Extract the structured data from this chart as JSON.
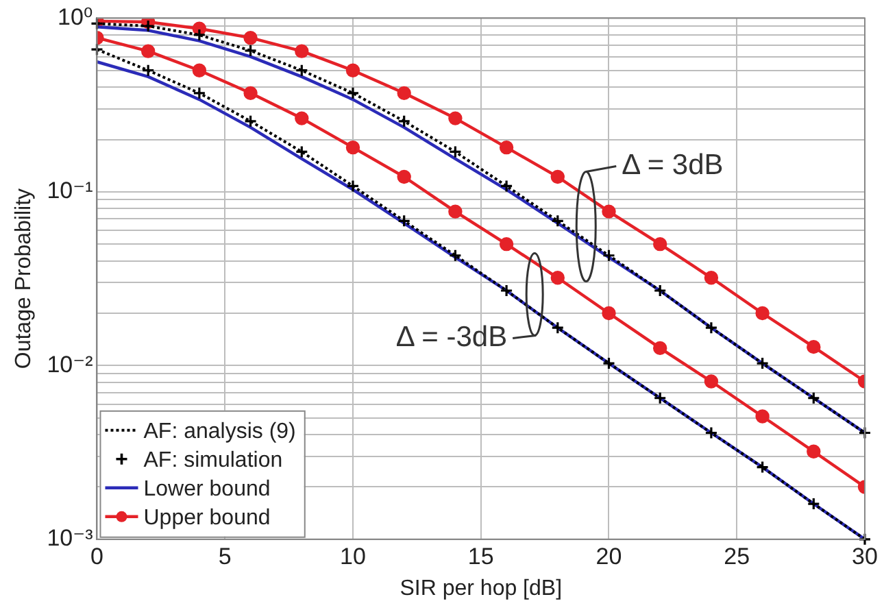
{
  "chart_data": {
    "type": "line",
    "xlabel": "SIR per hop [dB]",
    "ylabel": "Outage Probability",
    "log": "y",
    "grid": true,
    "legend": "bottom left",
    "x": [
      0,
      2,
      4,
      6,
      8,
      10,
      12,
      14,
      16,
      18,
      20,
      22,
      24,
      26,
      28,
      30
    ],
    "xlim": [
      0,
      30
    ],
    "xticks": [
      0,
      5,
      10,
      15,
      20,
      25,
      30
    ],
    "ylim": [
      0.001,
      1
    ],
    "yticks": [
      {
        "value": 0.001,
        "label": "10⁻³"
      },
      {
        "value": 0.002,
        "label": null
      },
      {
        "value": 0.003,
        "label": null
      },
      {
        "value": 0.004,
        "label": null
      },
      {
        "value": 0.005,
        "label": null
      },
      {
        "value": 0.006,
        "label": null
      },
      {
        "value": 0.007,
        "label": null
      },
      {
        "value": 0.008,
        "label": null
      },
      {
        "value": 0.009,
        "label": null
      },
      {
        "value": 0.01,
        "label": "10⁻²"
      },
      {
        "value": 0.02,
        "label": null
      },
      {
        "value": 0.03,
        "label": null
      },
      {
        "value": 0.04,
        "label": null
      },
      {
        "value": 0.05,
        "label": null
      },
      {
        "value": 0.06,
        "label": null
      },
      {
        "value": 0.07,
        "label": null
      },
      {
        "value": 0.08,
        "label": null
      },
      {
        "value": 0.09,
        "label": null
      },
      {
        "value": 0.1,
        "label": "10⁻¹"
      },
      {
        "value": 0.2,
        "label": null
      },
      {
        "value": 0.3,
        "label": null
      },
      {
        "value": 0.4,
        "label": null
      },
      {
        "value": 0.5,
        "label": null
      },
      {
        "value": 0.6,
        "label": null
      },
      {
        "value": 0.7,
        "label": null
      },
      {
        "value": 0.8,
        "label": null
      },
      {
        "value": 0.9,
        "label": null
      },
      {
        "value": 1,
        "label": "10⁰"
      }
    ],
    "series": [
      {
        "name": "AF: analysis (9)",
        "line_style": "dotted",
        "marker": "none",
        "color": "#000000",
        "values": [
          0.93,
          0.9,
          0.8,
          0.65,
          0.5,
          0.37,
          0.255,
          0.17,
          0.108,
          0.068,
          0.043,
          0.027,
          0.0165,
          0.0103,
          0.0065,
          0.0041
        ]
      },
      {
        "line_style": "dotted",
        "marker": "none",
        "color": "#000000",
        "values": [
          0.66,
          0.5,
          0.37,
          0.255,
          0.17,
          0.108,
          0.068,
          0.043,
          0.027,
          0.0165,
          0.0103,
          0.0065,
          0.0041,
          0.0026,
          0.0016,
          0.001
        ]
      },
      {
        "name": "AF: simulation",
        "type": "scatter",
        "marker": "cross",
        "color": "#000000",
        "values": [
          0.93,
          0.9,
          0.8,
          0.65,
          0.5,
          0.37,
          0.255,
          0.17,
          0.108,
          0.068,
          0.043,
          0.027,
          0.0165,
          0.0103,
          0.0065,
          0.0041
        ]
      },
      {
        "type": "scatter",
        "marker": "cross",
        "color": "#000000",
        "values": [
          0.66,
          0.5,
          0.37,
          0.255,
          0.17,
          0.108,
          0.068,
          0.043,
          0.027,
          0.0165,
          0.0103,
          0.0065,
          0.0041,
          0.0026,
          0.0016,
          0.001
        ]
      },
      {
        "name": "Lower bound",
        "line_style": "solid",
        "marker": "none",
        "color": "#2b2bb8",
        "values": [
          0.89,
          0.85,
          0.74,
          0.6,
          0.46,
          0.34,
          0.235,
          0.155,
          0.103,
          0.066,
          0.042,
          0.027,
          0.0165,
          0.0103,
          0.0065,
          0.0041
        ]
      },
      {
        "line_style": "solid",
        "marker": "none",
        "color": "#2b2bb8",
        "values": [
          0.56,
          0.46,
          0.34,
          0.235,
          0.155,
          0.103,
          0.066,
          0.042,
          0.027,
          0.0165,
          0.0103,
          0.0065,
          0.0041,
          0.0026,
          0.0016,
          0.001
        ]
      },
      {
        "name": "Upper bound",
        "line_style": "solid",
        "marker": "circle",
        "color": "#e52228",
        "values": [
          0.96,
          0.95,
          0.87,
          0.77,
          0.645,
          0.5,
          0.37,
          0.265,
          0.18,
          0.122,
          0.077,
          0.05,
          0.032,
          0.02,
          0.0128,
          0.0081
        ]
      },
      {
        "line_style": "solid",
        "marker": "circle",
        "color": "#e52228",
        "values": [
          0.77,
          0.645,
          0.5,
          0.37,
          0.265,
          0.18,
          0.122,
          0.077,
          0.05,
          0.032,
          0.02,
          0.0126,
          0.0081,
          0.0051,
          0.0032,
          0.002
        ]
      }
    ],
    "annotations": [
      "Δ = 3dB",
      "Δ = -3dB"
    ]
  }
}
